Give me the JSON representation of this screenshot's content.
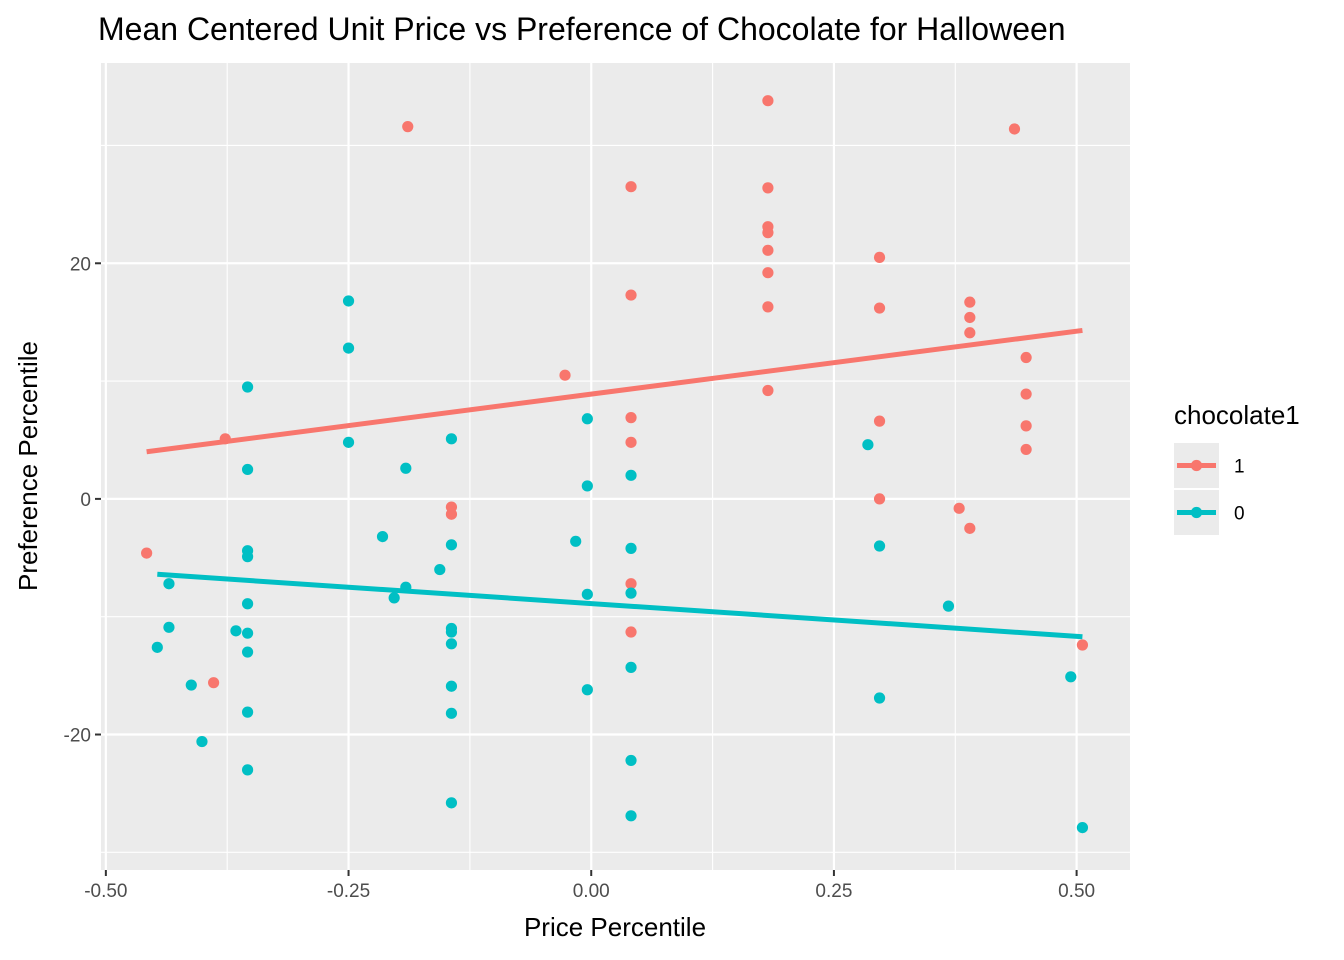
{
  "chart_data": {
    "type": "scatter",
    "title": "Mean Centered Unit Price vs Preference of Chocolate for Halloween",
    "xlabel": "Price Percentile",
    "ylabel": "Preference Percentile",
    "xlim": [
      -0.505,
      0.555
    ],
    "ylim": [
      -31.5,
      37.0
    ],
    "x_ticks": [
      {
        "value": -0.5,
        "label": "-0.50"
      },
      {
        "value": -0.25,
        "label": "-0.25"
      },
      {
        "value": 0.0,
        "label": "0.00"
      },
      {
        "value": 0.25,
        "label": "0.25"
      },
      {
        "value": 0.5,
        "label": "0.50"
      }
    ],
    "x_minor_ticks": [
      -0.375,
      -0.125,
      0.125,
      0.375
    ],
    "y_ticks": [
      {
        "value": -20,
        "label": "-20"
      },
      {
        "value": 0,
        "label": "0"
      },
      {
        "value": 20,
        "label": "20"
      }
    ],
    "y_minor_ticks": [
      -30,
      -10,
      10,
      30
    ],
    "grid": true,
    "legend": {
      "title": "chocolate1",
      "position": "right"
    },
    "series": [
      {
        "name": "1",
        "color": "#F8766D",
        "points": [
          {
            "x": -0.458,
            "y": -4.6
          },
          {
            "x": -0.377,
            "y": 5.1
          },
          {
            "x": -0.389,
            "y": -15.6
          },
          {
            "x": -0.189,
            "y": 31.6
          },
          {
            "x": -0.144,
            "y": -0.7
          },
          {
            "x": -0.144,
            "y": -1.3
          },
          {
            "x": -0.027,
            "y": 10.5
          },
          {
            "x": 0.041,
            "y": 26.5
          },
          {
            "x": 0.041,
            "y": 17.3
          },
          {
            "x": 0.041,
            "y": 6.9
          },
          {
            "x": 0.041,
            "y": 4.8
          },
          {
            "x": 0.041,
            "y": -7.2
          },
          {
            "x": 0.041,
            "y": -11.3
          },
          {
            "x": 0.182,
            "y": 33.8
          },
          {
            "x": 0.182,
            "y": 26.4
          },
          {
            "x": 0.182,
            "y": 23.1
          },
          {
            "x": 0.182,
            "y": 22.6
          },
          {
            "x": 0.182,
            "y": 21.1
          },
          {
            "x": 0.182,
            "y": 19.2
          },
          {
            "x": 0.182,
            "y": 16.3
          },
          {
            "x": 0.182,
            "y": 9.2
          },
          {
            "x": 0.297,
            "y": 20.5
          },
          {
            "x": 0.297,
            "y": 16.2
          },
          {
            "x": 0.297,
            "y": 6.6
          },
          {
            "x": 0.297,
            "y": 0.0
          },
          {
            "x": 0.379,
            "y": -0.8
          },
          {
            "x": 0.39,
            "y": -2.5
          },
          {
            "x": 0.39,
            "y": 16.7
          },
          {
            "x": 0.39,
            "y": 15.4
          },
          {
            "x": 0.39,
            "y": 14.1
          },
          {
            "x": 0.436,
            "y": 31.4
          },
          {
            "x": 0.448,
            "y": 12.0
          },
          {
            "x": 0.448,
            "y": 8.9
          },
          {
            "x": 0.448,
            "y": 6.2
          },
          {
            "x": 0.448,
            "y": 4.2
          },
          {
            "x": 0.506,
            "y": -12.4
          }
        ],
        "trend": {
          "x": [
            -0.458,
            0.506
          ],
          "y": [
            4.0,
            14.3
          ]
        }
      },
      {
        "name": "0",
        "color": "#00BFC4",
        "points": [
          {
            "x": -0.447,
            "y": -12.6
          },
          {
            "x": -0.435,
            "y": -7.2
          },
          {
            "x": -0.435,
            "y": -10.9
          },
          {
            "x": -0.412,
            "y": -15.8
          },
          {
            "x": -0.401,
            "y": -20.6
          },
          {
            "x": -0.366,
            "y": -11.2
          },
          {
            "x": -0.354,
            "y": 9.5
          },
          {
            "x": -0.354,
            "y": 2.5
          },
          {
            "x": -0.354,
            "y": -4.4
          },
          {
            "x": -0.354,
            "y": -4.9
          },
          {
            "x": -0.354,
            "y": -8.9
          },
          {
            "x": -0.354,
            "y": -11.4
          },
          {
            "x": -0.354,
            "y": -13.0
          },
          {
            "x": -0.354,
            "y": -18.1
          },
          {
            "x": -0.354,
            "y": -23.0
          },
          {
            "x": -0.25,
            "y": 16.8
          },
          {
            "x": -0.25,
            "y": 12.8
          },
          {
            "x": -0.25,
            "y": 4.8
          },
          {
            "x": -0.215,
            "y": -3.2
          },
          {
            "x": -0.203,
            "y": -8.4
          },
          {
            "x": -0.191,
            "y": 2.6
          },
          {
            "x": -0.191,
            "y": -7.5
          },
          {
            "x": -0.156,
            "y": -6.0
          },
          {
            "x": -0.144,
            "y": 5.1
          },
          {
            "x": -0.144,
            "y": -3.9
          },
          {
            "x": -0.144,
            "y": -11.0
          },
          {
            "x": -0.144,
            "y": -11.3
          },
          {
            "x": -0.144,
            "y": -12.3
          },
          {
            "x": -0.144,
            "y": -15.9
          },
          {
            "x": -0.144,
            "y": -18.2
          },
          {
            "x": -0.144,
            "y": -25.8
          },
          {
            "x": -0.016,
            "y": -3.6
          },
          {
            "x": -0.004,
            "y": 6.8
          },
          {
            "x": -0.004,
            "y": 1.1
          },
          {
            "x": -0.004,
            "y": -8.1
          },
          {
            "x": -0.004,
            "y": -16.2
          },
          {
            "x": 0.041,
            "y": 2.0
          },
          {
            "x": 0.041,
            "y": -4.2
          },
          {
            "x": 0.041,
            "y": -8.0
          },
          {
            "x": 0.041,
            "y": -14.3
          },
          {
            "x": 0.041,
            "y": -22.2
          },
          {
            "x": 0.041,
            "y": -26.9
          },
          {
            "x": 0.285,
            "y": 4.6
          },
          {
            "x": 0.297,
            "y": -4.0
          },
          {
            "x": 0.297,
            "y": -16.9
          },
          {
            "x": 0.368,
            "y": -9.1
          },
          {
            "x": 0.494,
            "y": -15.1
          },
          {
            "x": 0.506,
            "y": -27.9
          }
        ],
        "trend": {
          "x": [
            -0.447,
            0.506
          ],
          "y": [
            -6.4,
            -11.7
          ]
        }
      }
    ]
  }
}
